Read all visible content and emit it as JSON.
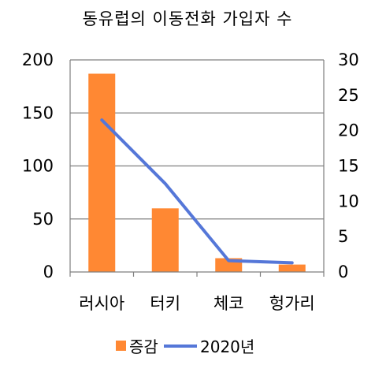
{
  "chart_data": {
    "type": "bar+line",
    "title": "동유럽의 이동전화 가입자 수",
    "categories": [
      "러시아",
      "터키",
      "체코",
      "헝가리"
    ],
    "series": [
      {
        "name": "증감",
        "type": "bar",
        "axis": "left",
        "color": "#ff8833",
        "values": [
          187,
          60,
          13,
          7
        ]
      },
      {
        "name": "2020년",
        "type": "line",
        "axis": "right",
        "color": "#5577d8",
        "values": [
          21.5,
          12.5,
          1.6,
          1.3
        ]
      }
    ],
    "left_axis": {
      "min": 0,
      "max": 200,
      "ticks": [
        0,
        50,
        100,
        150,
        200
      ]
    },
    "right_axis": {
      "min": 0,
      "max": 30,
      "ticks": [
        0,
        5,
        10,
        15,
        20,
        25,
        30
      ]
    },
    "grid": true,
    "legend_position": "bottom"
  }
}
